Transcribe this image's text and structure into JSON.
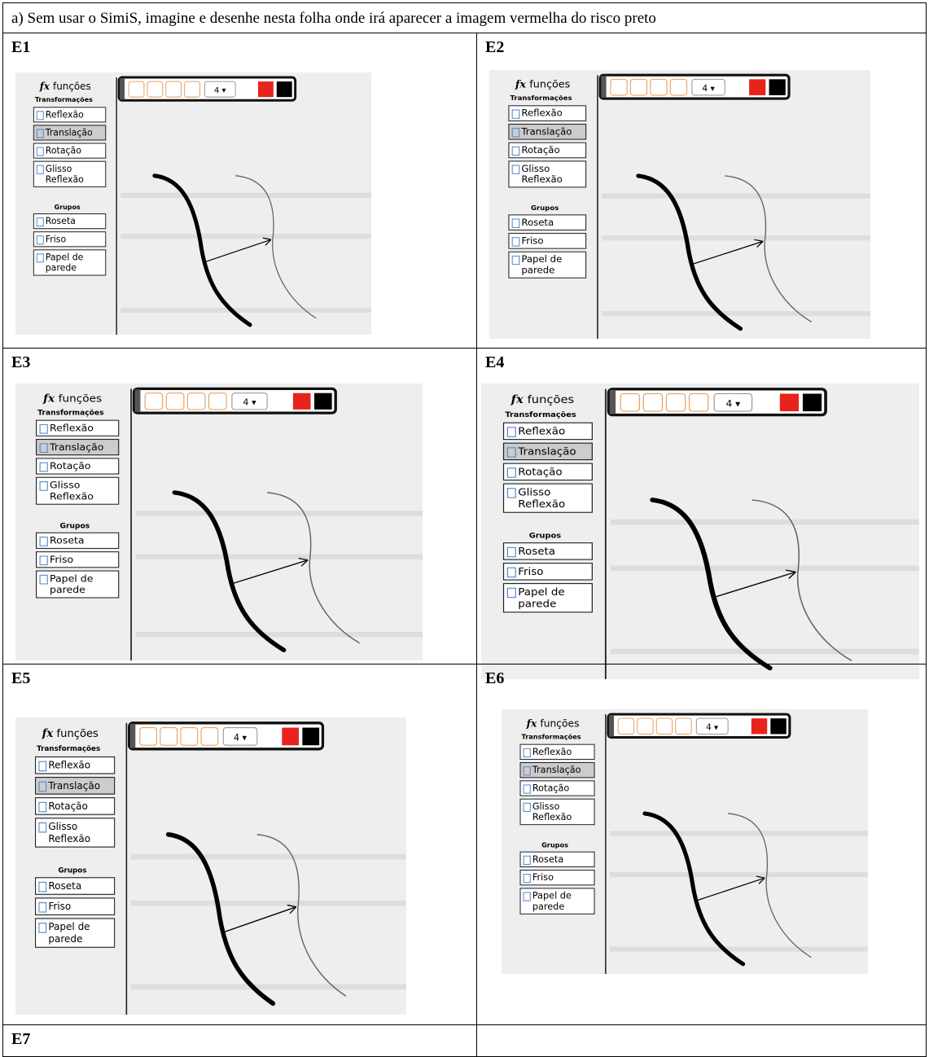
{
  "header": "a) Sem usar o SimiS, imagine e desenhe nesta folha onde irá aparecer a imagem vermelha do risco preto",
  "cells": [
    {
      "label": "E1"
    },
    {
      "label": "E2"
    },
    {
      "label": "E3"
    },
    {
      "label": "E4"
    },
    {
      "label": "E5"
    },
    {
      "label": "E6"
    },
    {
      "label": "E7"
    }
  ],
  "simis_panel": {
    "fx": "fx",
    "menu_title": "funções",
    "transformations_heading": "Transformações",
    "transformations": [
      "Reflexão",
      "Translação",
      "Rotação",
      "Glisso Reflexão"
    ],
    "groups_heading": "Grupos",
    "groups": [
      "Roseta",
      "Friso",
      "Papel de parede"
    ],
    "pen_size": "4 ▾"
  }
}
